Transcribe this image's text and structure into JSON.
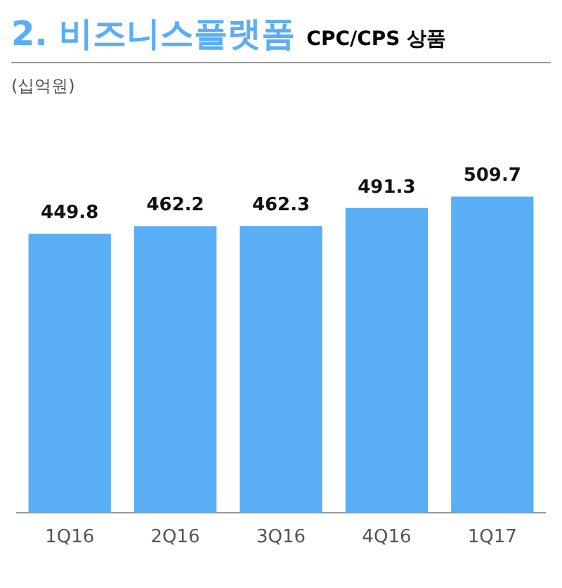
{
  "chart_data": {
    "type": "bar",
    "title": "2. 비즈니스플랫폼",
    "subtitle": "CPC/CPS 상품",
    "annotations": [
      "(십억원)"
    ],
    "categories": [
      "1Q16",
      "2Q16",
      "3Q16",
      "4Q16",
      "1Q17"
    ],
    "values": [
      449.8,
      462.2,
      462.3,
      491.3,
      509.7
    ],
    "color": "#5aaef6",
    "data_labels": true,
    "grid": false,
    "legend": false
  }
}
